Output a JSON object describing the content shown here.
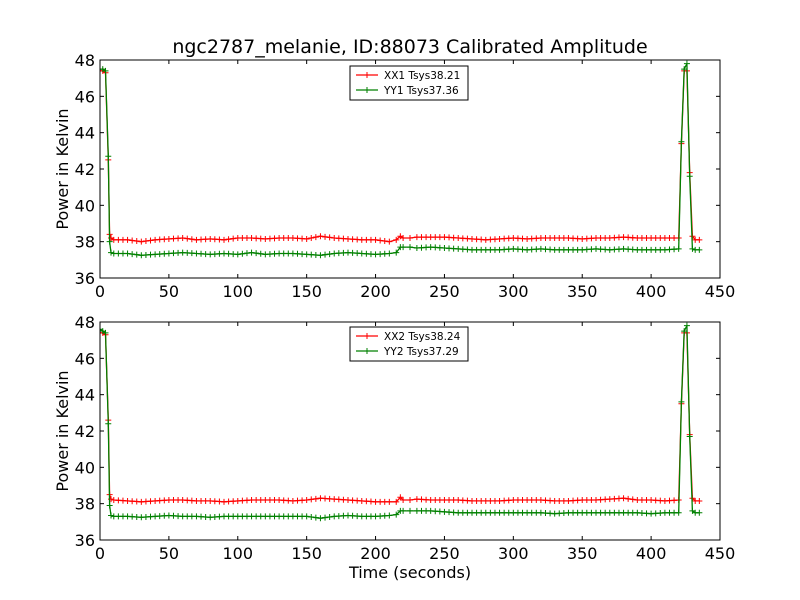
{
  "title": "ngc2787_melanie, ID:88073 Calibrated Amplitude",
  "xlabel": "Time (seconds)",
  "chart_data": [
    {
      "type": "line",
      "ylabel": "Power in Kelvin",
      "xlim": [
        0,
        450
      ],
      "ylim": [
        36,
        48
      ],
      "xticks": [
        0,
        50,
        100,
        150,
        200,
        250,
        300,
        350,
        400,
        450
      ],
      "yticks": [
        36,
        38,
        40,
        42,
        44,
        46,
        48
      ],
      "legend": "top-center",
      "series": [
        {
          "name": "XX1 Tsys38.21",
          "color": "#ff0000",
          "x": [
            0,
            2,
            4,
            6,
            7,
            8,
            10,
            20,
            30,
            40,
            50,
            60,
            70,
            80,
            90,
            100,
            110,
            120,
            130,
            140,
            150,
            160,
            170,
            180,
            190,
            200,
            210,
            215,
            218,
            220,
            225,
            230,
            240,
            250,
            260,
            270,
            280,
            290,
            300,
            310,
            320,
            330,
            340,
            350,
            360,
            370,
            380,
            390,
            400,
            410,
            420,
            422,
            424,
            426,
            428,
            430,
            432,
            435
          ],
          "y": [
            47.4,
            47.4,
            47.3,
            42.5,
            38.4,
            38.2,
            38.1,
            38.1,
            38.0,
            38.1,
            38.15,
            38.2,
            38.1,
            38.15,
            38.1,
            38.2,
            38.2,
            38.15,
            38.2,
            38.2,
            38.15,
            38.3,
            38.2,
            38.15,
            38.1,
            38.1,
            38.0,
            38.1,
            38.3,
            38.2,
            38.2,
            38.25,
            38.25,
            38.25,
            38.2,
            38.15,
            38.1,
            38.15,
            38.2,
            38.15,
            38.2,
            38.2,
            38.2,
            38.15,
            38.2,
            38.2,
            38.25,
            38.2,
            38.2,
            38.2,
            38.2,
            43.4,
            47.4,
            47.4,
            41.8,
            38.3,
            38.1,
            38.1
          ]
        },
        {
          "name": "YY1 Tsys37.36",
          "color": "#008000",
          "x": [
            0,
            2,
            4,
            6,
            7,
            8,
            10,
            20,
            30,
            40,
            50,
            60,
            70,
            80,
            90,
            100,
            110,
            120,
            130,
            140,
            150,
            160,
            170,
            180,
            190,
            200,
            210,
            215,
            218,
            220,
            225,
            230,
            240,
            250,
            260,
            270,
            280,
            290,
            300,
            310,
            320,
            330,
            340,
            350,
            360,
            370,
            380,
            390,
            400,
            410,
            420,
            422,
            424,
            426,
            428,
            430,
            432,
            435
          ],
          "y": [
            47.5,
            47.5,
            47.4,
            42.7,
            38.0,
            37.4,
            37.35,
            37.35,
            37.25,
            37.3,
            37.35,
            37.4,
            37.35,
            37.3,
            37.35,
            37.3,
            37.4,
            37.3,
            37.35,
            37.35,
            37.3,
            37.25,
            37.35,
            37.4,
            37.35,
            37.3,
            37.35,
            37.4,
            37.7,
            37.7,
            37.7,
            37.65,
            37.7,
            37.65,
            37.6,
            37.55,
            37.55,
            37.55,
            37.6,
            37.55,
            37.6,
            37.55,
            37.55,
            37.55,
            37.6,
            37.55,
            37.6,
            37.55,
            37.55,
            37.55,
            37.6,
            43.5,
            47.5,
            47.8,
            41.6,
            37.6,
            37.55,
            37.55
          ]
        }
      ]
    },
    {
      "type": "line",
      "ylabel": "Power in Kelvin",
      "xlim": [
        0,
        450
      ],
      "ylim": [
        36,
        48
      ],
      "xticks": [
        0,
        50,
        100,
        150,
        200,
        250,
        300,
        350,
        400,
        450
      ],
      "yticks": [
        36,
        38,
        40,
        42,
        44,
        46,
        48
      ],
      "legend": "top-center",
      "series": [
        {
          "name": "XX2 Tsys38.24",
          "color": "#ff0000",
          "x": [
            0,
            2,
            4,
            6,
            7,
            8,
            10,
            20,
            30,
            40,
            50,
            60,
            70,
            80,
            90,
            100,
            110,
            120,
            130,
            140,
            150,
            160,
            170,
            180,
            190,
            200,
            210,
            215,
            218,
            220,
            225,
            230,
            240,
            250,
            260,
            270,
            280,
            290,
            300,
            310,
            320,
            330,
            340,
            350,
            360,
            370,
            380,
            390,
            400,
            410,
            420,
            422,
            424,
            426,
            428,
            430,
            432,
            435
          ],
          "y": [
            47.4,
            47.4,
            47.3,
            42.6,
            38.5,
            38.25,
            38.2,
            38.15,
            38.1,
            38.15,
            38.2,
            38.2,
            38.15,
            38.15,
            38.1,
            38.15,
            38.2,
            38.2,
            38.2,
            38.15,
            38.2,
            38.3,
            38.25,
            38.2,
            38.15,
            38.1,
            38.1,
            38.1,
            38.35,
            38.2,
            38.2,
            38.25,
            38.2,
            38.2,
            38.2,
            38.15,
            38.15,
            38.15,
            38.2,
            38.2,
            38.2,
            38.15,
            38.15,
            38.2,
            38.2,
            38.25,
            38.3,
            38.2,
            38.2,
            38.15,
            38.2,
            43.5,
            47.4,
            47.4,
            41.8,
            38.3,
            38.15,
            38.15
          ]
        },
        {
          "name": "YY2 Tsys37.29",
          "color": "#008000",
          "x": [
            0,
            2,
            4,
            6,
            7,
            8,
            10,
            20,
            30,
            40,
            50,
            60,
            70,
            80,
            90,
            100,
            110,
            120,
            130,
            140,
            150,
            160,
            170,
            180,
            190,
            200,
            210,
            215,
            218,
            220,
            225,
            230,
            240,
            250,
            260,
            270,
            280,
            290,
            300,
            310,
            320,
            330,
            340,
            350,
            360,
            370,
            380,
            390,
            400,
            410,
            420,
            422,
            424,
            426,
            428,
            430,
            432,
            435
          ],
          "y": [
            47.6,
            47.5,
            47.4,
            42.4,
            37.9,
            37.35,
            37.3,
            37.3,
            37.25,
            37.3,
            37.35,
            37.3,
            37.3,
            37.25,
            37.3,
            37.3,
            37.3,
            37.3,
            37.3,
            37.3,
            37.3,
            37.2,
            37.3,
            37.35,
            37.3,
            37.3,
            37.35,
            37.4,
            37.6,
            37.6,
            37.6,
            37.6,
            37.6,
            37.55,
            37.5,
            37.5,
            37.5,
            37.5,
            37.5,
            37.5,
            37.5,
            37.45,
            37.5,
            37.5,
            37.5,
            37.5,
            37.5,
            37.5,
            37.45,
            37.5,
            37.5,
            43.6,
            47.5,
            47.8,
            41.7,
            37.6,
            37.5,
            37.5
          ]
        }
      ]
    }
  ]
}
